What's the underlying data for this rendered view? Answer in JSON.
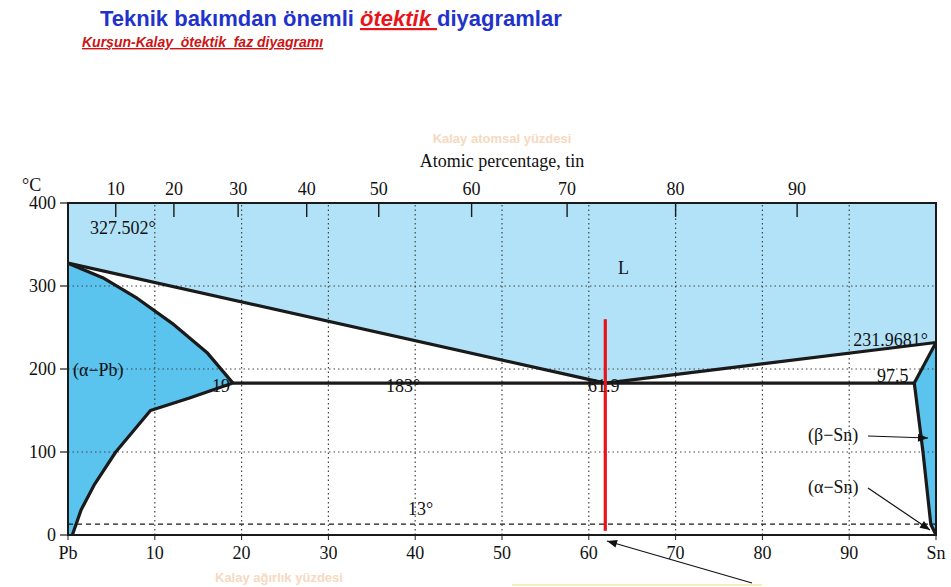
{
  "chart_data": {
    "type": "line",
    "title": "Teknik bakımdan önemli ötektik diyagramlar",
    "subtitle": "Kurşun-Kalay  ötektik  faz diyagramı",
    "x2_label_note": "Kalay atomsal yüzdesi",
    "x2_label": "Atomic percentage, tin",
    "x_label_note": "Kalay ağırlık yüzdesi",
    "y_label": "°C",
    "xlim": [
      0,
      100
    ],
    "ylim": [
      0,
      400
    ],
    "xticks": [
      {
        "value": 0,
        "label": "Pb"
      },
      10,
      20,
      30,
      40,
      50,
      60,
      70,
      80,
      90,
      {
        "value": 100,
        "label": "Sn"
      }
    ],
    "yticks": [
      0,
      100,
      200,
      300,
      400
    ],
    "x2ticks": [
      {
        "value": 5.5,
        "label": "10"
      },
      {
        "value": 12.2,
        "label": "20"
      },
      {
        "value": 19.6,
        "label": "30"
      },
      {
        "value": 27.5,
        "label": "40"
      },
      {
        "value": 35.8,
        "label": "50"
      },
      {
        "value": 46.5,
        "label": "60"
      },
      {
        "value": 57.5,
        "label": "70"
      },
      {
        "value": 70,
        "label": "80"
      },
      {
        "value": 84,
        "label": "90"
      }
    ],
    "grid": true,
    "series": [
      {
        "type": "area",
        "color": "#b2e2f7",
        "x": [
          0,
          61.9,
          100,
          100,
          0
        ],
        "values": [
          327.502,
          183,
          231.9681,
          400,
          400
        ]
      },
      {
        "type": "area",
        "color": "#5ac3ee",
        "x": [
          0,
          4,
          8,
          12,
          16,
          19,
          14,
          9.5,
          5.5,
          3,
          1.5,
          0.5,
          0
        ],
        "values": [
          327.502,
          310,
          285,
          255,
          220,
          183,
          165,
          150,
          100,
          60,
          30,
          0,
          0
        ]
      },
      {
        "type": "area",
        "color": "#5ac3ee",
        "x": [
          97.5,
          100,
          100,
          99.4,
          98.5
        ],
        "values": [
          183,
          231.9681,
          0,
          13,
          100
        ]
      },
      {
        "type": "line",
        "color": "#1a1a1a",
        "line_style": "solid",
        "x": [
          0,
          61.9,
          100
        ],
        "values": [
          327.502,
          183,
          231.9681
        ]
      },
      {
        "type": "line",
        "color": "#1a1a1a",
        "line_style": "solid",
        "x": [
          0,
          4,
          8,
          12,
          16,
          19
        ],
        "values": [
          327.502,
          310,
          285,
          255,
          220,
          183
        ]
      },
      {
        "type": "line",
        "color": "#1a1a1a",
        "line_style": "solid",
        "x": [
          19,
          14,
          9.5,
          5.5,
          3,
          1.5,
          0.5
        ],
        "values": [
          183,
          165,
          150,
          100,
          60,
          30,
          0
        ]
      },
      {
        "type": "line",
        "color": "#1a1a1a",
        "line_style": "solid",
        "x": [
          19,
          97.5
        ],
        "values": [
          183,
          183
        ]
      },
      {
        "type": "line",
        "color": "#1a1a1a",
        "line_style": "solid",
        "x": [
          97.5,
          100
        ],
        "values": [
          183,
          231.9681
        ]
      },
      {
        "type": "line",
        "color": "#1a1a1a",
        "line_style": "solid",
        "x": [
          97.5,
          98.5,
          99.4,
          100
        ],
        "values": [
          183,
          100,
          13,
          0
        ]
      },
      {
        "type": "line",
        "color": "#1a1a1a",
        "line_style": "dashed",
        "x": [
          0,
          100
        ],
        "values": [
          13,
          13
        ]
      },
      {
        "type": "line",
        "color": "#e8141a",
        "line_style": "solid",
        "x": [
          61.9,
          61.9
        ],
        "values": [
          5,
          260
        ]
      }
    ],
    "annotations": [
      "327.502°",
      "L",
      "231.9681°",
      "(α−Pb)",
      "19",
      "183°",
      "61.9",
      "97.5",
      "(β−Sn)",
      "(α−Sn)",
      "13°"
    ]
  }
}
